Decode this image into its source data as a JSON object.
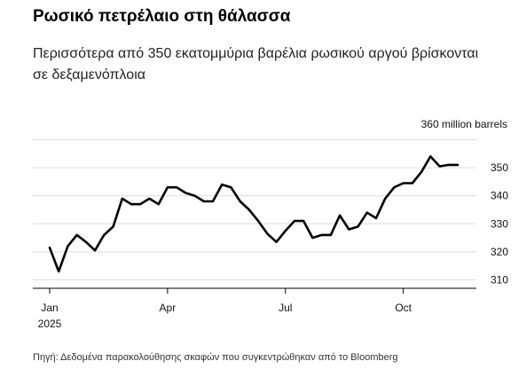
{
  "header": {
    "title": "Ρωσικό πετρέλαιο στη θάλασσα",
    "subtitle": "Περισσότερα από 350 εκατομμύρια βαρέλια ρωσικού αργού βρίσκονται σε δεξαμενόπλοια"
  },
  "footer": {
    "source": "Πηγή: Δεδομένα παρακολούθησης σκαφών που συγκεντρώθηκαν από το Bloomberg"
  },
  "chart_data": {
    "type": "line",
    "title": "Ρωσικό πετρέλαιο στη θάλασσα",
    "subtitle": "Περισσότερα από 350 εκατομμύρια βαρέλια ρωσικού αργού βρίσκονται σε δεξαμενόπλοια",
    "ylabel": "360 million barrels",
    "ylim": [
      307,
      363
    ],
    "yticks": [
      310,
      320,
      330,
      340,
      350
    ],
    "xticks": [
      {
        "label": "Jan",
        "sublabel": "2025",
        "x": 0
      },
      {
        "label": "Apr",
        "x": 13
      },
      {
        "label": "Jul",
        "x": 26
      },
      {
        "label": "Oct",
        "x": 39
      }
    ],
    "grid": true,
    "line_color": "#000000",
    "series": [
      {
        "x": [
          0,
          1,
          2,
          3,
          4,
          5,
          6,
          7,
          8,
          9,
          10,
          11,
          12,
          13,
          14,
          15,
          16,
          17,
          18,
          19,
          20,
          21,
          22,
          23,
          24,
          25,
          26,
          27,
          28,
          29,
          30,
          31,
          32,
          33,
          34,
          35,
          36,
          37,
          38,
          39,
          40,
          41,
          42,
          43,
          44,
          45
        ],
        "values": [
          321.5,
          313,
          322,
          326,
          323.5,
          320.5,
          326,
          329,
          339,
          337,
          337,
          339,
          337,
          343,
          343,
          341,
          340,
          338,
          338,
          344,
          343,
          338,
          335,
          331,
          326.5,
          323.5,
          327.5,
          331,
          331,
          325,
          326,
          326,
          333,
          328,
          329,
          334,
          332,
          339,
          343,
          344.5,
          344.5,
          348.5,
          354,
          350.5,
          351,
          351
        ]
      }
    ]
  }
}
